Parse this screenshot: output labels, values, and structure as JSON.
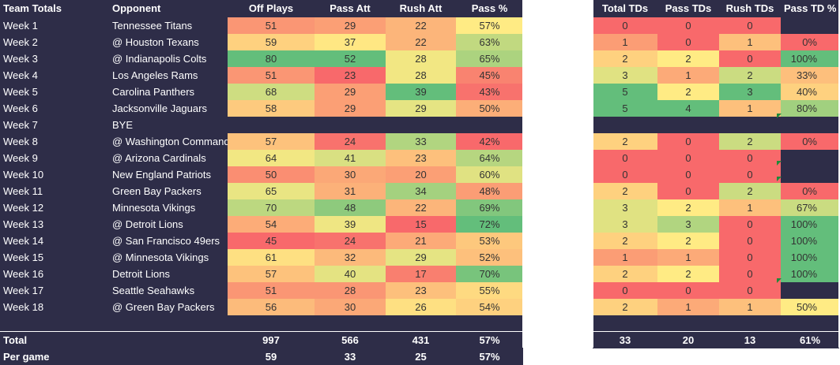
{
  "left_header": {
    "team_totals": "Team Totals",
    "opponent": "Opponent",
    "off_plays": "Off Plays",
    "pass_att": "Pass Att",
    "rush_att": "Rush Att",
    "pass_pct": "Pass %"
  },
  "right_header": {
    "total_tds": "Total TDs",
    "pass_tds": "Pass TDs",
    "rush_tds": "Rush TDs",
    "pass_td_pct": "Pass TD %"
  },
  "rows": [
    {
      "week": "Week 1",
      "opponent": "Tennessee Titans",
      "off_plays": "51",
      "pass_att": "29",
      "rush_att": "22",
      "pass_pct": "57%",
      "total_tds": "0",
      "pass_tds": "0",
      "rush_tds": "0",
      "pass_td_pct": ""
    },
    {
      "week": "Week 2",
      "opponent": "@ Houston Texans",
      "off_plays": "59",
      "pass_att": "37",
      "rush_att": "22",
      "pass_pct": "63%",
      "total_tds": "1",
      "pass_tds": "0",
      "rush_tds": "1",
      "pass_td_pct": "0%"
    },
    {
      "week": "Week 3",
      "opponent": "@ Indianapolis Colts",
      "off_plays": "80",
      "pass_att": "52",
      "rush_att": "28",
      "pass_pct": "65%",
      "total_tds": "2",
      "pass_tds": "2",
      "rush_tds": "0",
      "pass_td_pct": "100%"
    },
    {
      "week": "Week 4",
      "opponent": "Los Angeles Rams",
      "off_plays": "51",
      "pass_att": "23",
      "rush_att": "28",
      "pass_pct": "45%",
      "total_tds": "3",
      "pass_tds": "1",
      "rush_tds": "2",
      "pass_td_pct": "33%"
    },
    {
      "week": "Week 5",
      "opponent": "Carolina Panthers",
      "off_plays": "68",
      "pass_att": "29",
      "rush_att": "39",
      "pass_pct": "43%",
      "total_tds": "5",
      "pass_tds": "2",
      "rush_tds": "3",
      "pass_td_pct": "40%"
    },
    {
      "week": "Week 6",
      "opponent": "Jacksonville Jaguars",
      "off_plays": "58",
      "pass_att": "29",
      "rush_att": "29",
      "pass_pct": "50%",
      "total_tds": "5",
      "pass_tds": "4",
      "rush_tds": "1",
      "pass_td_pct": "80%"
    },
    {
      "week": "Week 7",
      "opponent": "BYE",
      "bye": true,
      "off_plays": "",
      "pass_att": "",
      "rush_att": "",
      "pass_pct": "",
      "total_tds": "",
      "pass_tds": "",
      "rush_tds": "",
      "pass_td_pct": ""
    },
    {
      "week": "Week 8",
      "opponent": "@ Washington Commanders",
      "off_plays": "57",
      "pass_att": "24",
      "rush_att": "33",
      "pass_pct": "42%",
      "total_tds": "2",
      "pass_tds": "0",
      "rush_tds": "2",
      "pass_td_pct": "0%"
    },
    {
      "week": "Week 9",
      "opponent": "@ Arizona Cardinals",
      "off_plays": "64",
      "pass_att": "41",
      "rush_att": "23",
      "pass_pct": "64%",
      "total_tds": "0",
      "pass_tds": "0",
      "rush_tds": "0",
      "pass_td_pct": ""
    },
    {
      "week": "Week 10",
      "opponent": "New England Patriots",
      "off_plays": "50",
      "pass_att": "30",
      "rush_att": "20",
      "pass_pct": "60%",
      "total_tds": "0",
      "pass_tds": "0",
      "rush_tds": "0",
      "pass_td_pct": ""
    },
    {
      "week": "Week 11",
      "opponent": "Green Bay Packers",
      "off_plays": "65",
      "pass_att": "31",
      "rush_att": "34",
      "pass_pct": "48%",
      "total_tds": "2",
      "pass_tds": "0",
      "rush_tds": "2",
      "pass_td_pct": "0%"
    },
    {
      "week": "Week 12",
      "opponent": "Minnesota Vikings",
      "off_plays": "70",
      "pass_att": "48",
      "rush_att": "22",
      "pass_pct": "69%",
      "total_tds": "3",
      "pass_tds": "2",
      "rush_tds": "1",
      "pass_td_pct": "67%"
    },
    {
      "week": "Week 13",
      "opponent": "@ Detroit Lions",
      "off_plays": "54",
      "pass_att": "39",
      "rush_att": "15",
      "pass_pct": "72%",
      "total_tds": "3",
      "pass_tds": "3",
      "rush_tds": "0",
      "pass_td_pct": "100%"
    },
    {
      "week": "Week 14",
      "opponent": "@ San Francisco 49ers",
      "off_plays": "45",
      "pass_att": "24",
      "rush_att": "21",
      "pass_pct": "53%",
      "total_tds": "2",
      "pass_tds": "2",
      "rush_tds": "0",
      "pass_td_pct": "100%"
    },
    {
      "week": "Week 15",
      "opponent": "@ Minnesota Vikings",
      "off_plays": "61",
      "pass_att": "32",
      "rush_att": "29",
      "pass_pct": "52%",
      "total_tds": "1",
      "pass_tds": "1",
      "rush_tds": "0",
      "pass_td_pct": "100%"
    },
    {
      "week": "Week 16",
      "opponent": "Detroit Lions",
      "off_plays": "57",
      "pass_att": "40",
      "rush_att": "17",
      "pass_pct": "70%",
      "total_tds": "2",
      "pass_tds": "2",
      "rush_tds": "0",
      "pass_td_pct": "100%"
    },
    {
      "week": "Week 17",
      "opponent": "Seattle Seahawks",
      "off_plays": "51",
      "pass_att": "28",
      "rush_att": "23",
      "pass_pct": "55%",
      "total_tds": "0",
      "pass_tds": "0",
      "rush_tds": "0",
      "pass_td_pct": ""
    },
    {
      "week": "Week 18",
      "opponent": "@ Green Bay Packers",
      "off_plays": "56",
      "pass_att": "30",
      "rush_att": "26",
      "pass_pct": "54%",
      "total_tds": "2",
      "pass_tds": "1",
      "rush_tds": "1",
      "pass_td_pct": "50%"
    }
  ],
  "total": {
    "label": "Total",
    "off_plays": "997",
    "pass_att": "566",
    "rush_att": "431",
    "pass_pct": "57%",
    "total_tds": "33",
    "pass_tds": "20",
    "rush_tds": "13",
    "pass_td_pct": "61%"
  },
  "per_game": {
    "label": "Per game",
    "off_plays": "59",
    "pass_att": "33",
    "rush_att": "25",
    "pass_pct": "57%"
  },
  "colors": {
    "background": "#2e2d48",
    "header_text": "#ffffff",
    "scale_red": "#f8696b",
    "scale_yellow": "#ffeb84",
    "scale_green": "#63be7b"
  }
}
